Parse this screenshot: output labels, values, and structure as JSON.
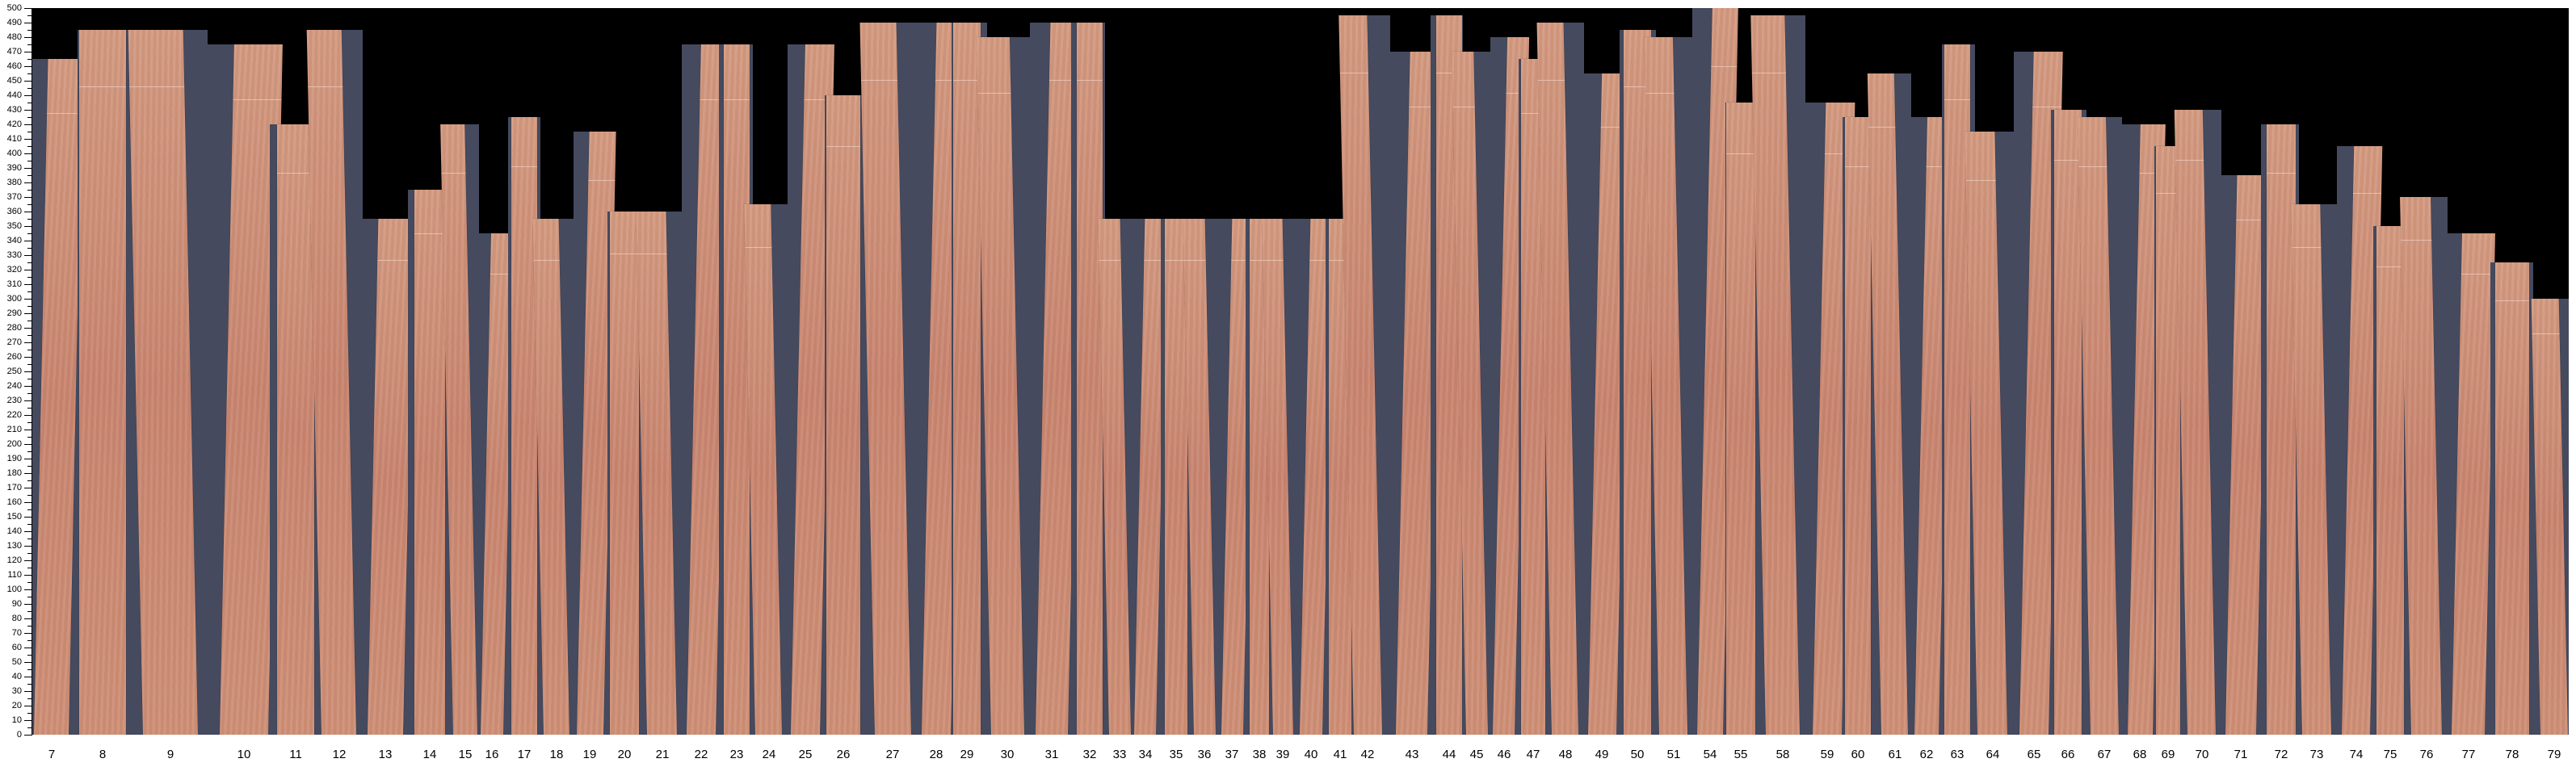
{
  "chart_data": {
    "type": "bar",
    "title": "",
    "xlabel": "",
    "ylabel": "",
    "ylim": [
      0,
      500
    ],
    "y_tick_step": 10,
    "grid": false,
    "categories": [
      "7",
      "8",
      "9",
      "10",
      "11",
      "12",
      "13",
      "14",
      "15",
      "16",
      "17",
      "18",
      "19",
      "20",
      "21",
      "22",
      "23",
      "24",
      "25",
      "26",
      "27",
      "28",
      "29",
      "30",
      "31",
      "32",
      "33",
      "34",
      "35",
      "36",
      "37",
      "38",
      "39",
      "40",
      "41",
      "42",
      "43",
      "44",
      "45",
      "46",
      "47",
      "48",
      "49",
      "50",
      "51",
      "54",
      "55",
      "58",
      "59",
      "60",
      "61",
      "62",
      "63",
      "64",
      "65",
      "66",
      "67",
      "68",
      "69",
      "70",
      "71",
      "72",
      "73",
      "74",
      "75",
      "76",
      "77",
      "78",
      "79"
    ],
    "values": [
      465,
      485,
      485,
      475,
      420,
      485,
      355,
      375,
      420,
      345,
      425,
      355,
      415,
      360,
      360,
      475,
      475,
      365,
      475,
      440,
      490,
      490,
      490,
      480,
      490,
      490,
      355,
      355,
      355,
      355,
      355,
      355,
      355,
      355,
      355,
      495,
      470,
      495,
      470,
      480,
      465,
      490,
      455,
      485,
      480,
      500,
      435,
      495,
      435,
      425,
      455,
      425,
      475,
      415,
      470,
      430,
      425,
      420,
      405,
      430,
      385,
      420,
      365,
      405,
      350,
      370,
      345,
      325,
      300
    ],
    "colors": {
      "plot_background": "#000000",
      "slot": "#454a5e",
      "veneer": "#c98a72"
    }
  }
}
